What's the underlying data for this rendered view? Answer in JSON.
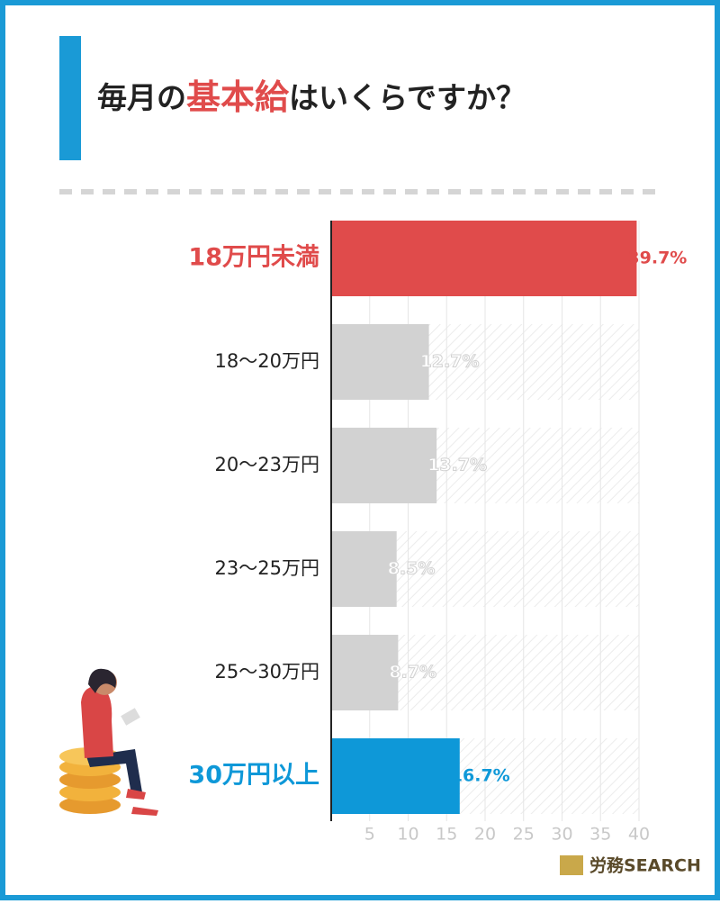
{
  "header": {
    "title_parts": [
      "毎月の",
      "基本給",
      "はいくらですか？"
    ]
  },
  "chart_data": {
    "type": "bar",
    "orientation": "horizontal",
    "categories": [
      "18万円未満",
      "18〜20万円",
      "20〜23万円",
      "23〜25万円",
      "25〜30万円",
      "30万円以上"
    ],
    "values": [
      39.7,
      12.7,
      13.7,
      8.5,
      8.7,
      16.7
    ],
    "value_labels": [
      "39.7%",
      "12.7%",
      "13.7%",
      "8.5%",
      "8.7%",
      "16.7%"
    ],
    "colors": [
      "#e04b4b",
      "#d2d2d2",
      "#d2d2d2",
      "#d2d2d2",
      "#d2d2d2",
      "#0e98d8"
    ],
    "category_label_colors": [
      "#e04b4b",
      "#222222",
      "#222222",
      "#222222",
      "#222222",
      "#0e98d8"
    ],
    "value_label_colors": [
      "#e04b4b",
      "#ffffff",
      "#ffffff",
      "#ffffff",
      "#ffffff",
      "#0e98d8"
    ],
    "xlim": [
      0,
      40
    ],
    "xticks": [
      5,
      10,
      15,
      20,
      25,
      30,
      35,
      40
    ],
    "grid": true
  },
  "logo": "労務SEARCH"
}
